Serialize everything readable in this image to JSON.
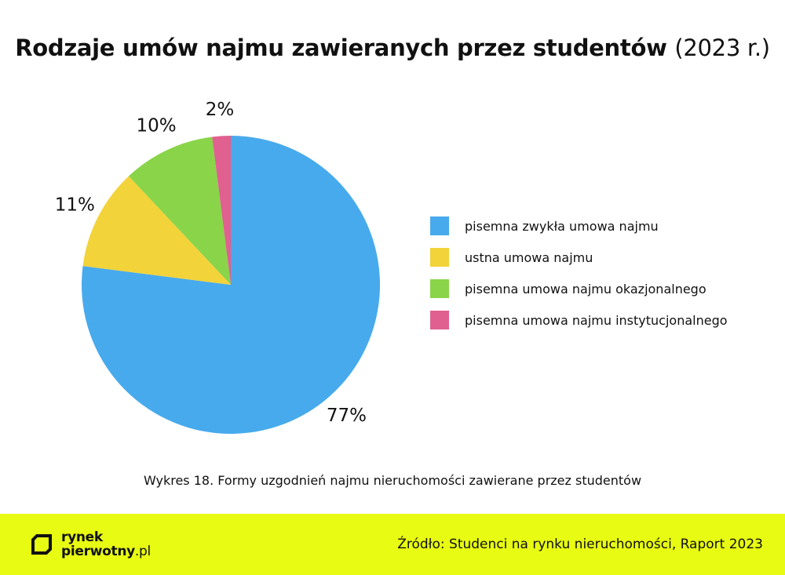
{
  "title": {
    "main": "Rodzaje umów najmu zawieranych przez studentów",
    "year": "(2023 r.)"
  },
  "chart_data": {
    "type": "pie",
    "title": "Rodzaje umów najmu zawieranych przez studentów (2023 r.)",
    "slices": [
      {
        "label": "pisemna zwykła umowa najmu",
        "value": 77,
        "display": "77%",
        "color": "#47aaec"
      },
      {
        "label": "ustna umowa najmu",
        "value": 11,
        "display": "11%",
        "color": "#f2d33a"
      },
      {
        "label": "pisemna umowa najmu okazjonalnego",
        "value": 10,
        "display": "10%",
        "color": "#8ad44a"
      },
      {
        "label": "pisemna umowa najmu instytucjonalnego",
        "value": 2,
        "display": "2%",
        "color": "#e0608f"
      }
    ],
    "legend_position": "right"
  },
  "caption": "Wykres 18. Formy uzgodnień najmu nieruchomości zawierane przez studentów",
  "footer": {
    "logo_line1": "rynek",
    "logo_line2": "pierwotny",
    "logo_domain": ".pl",
    "source": "Źródło: Studenci na rynku nieruchomości, Raport 2023",
    "background": "#e8fb12"
  }
}
